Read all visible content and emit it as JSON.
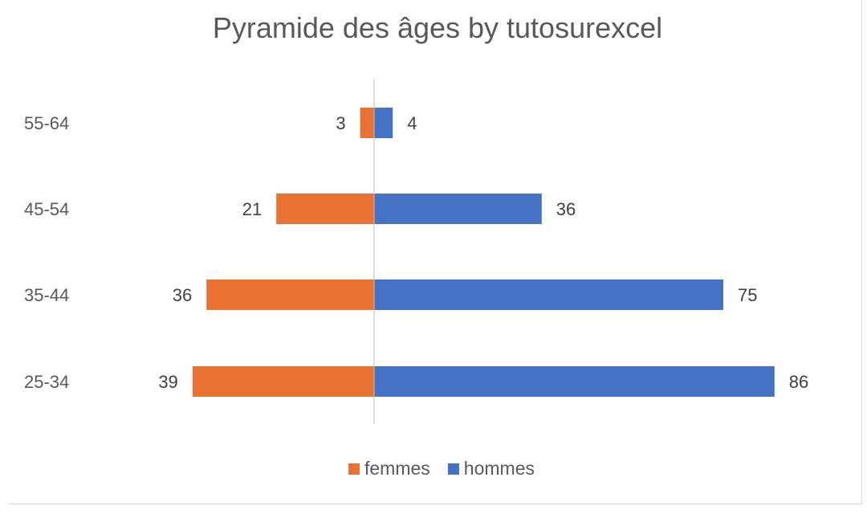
{
  "chart_data": {
    "type": "bar",
    "orientation": "horizontal",
    "title": "Pyramide des âges by tutosurexcel",
    "categories": [
      "55-64",
      "45-54",
      "35-44",
      "25-34"
    ],
    "series": [
      {
        "name": "femmes",
        "values": [
          3,
          21,
          36,
          39
        ],
        "color": "#E97132",
        "side": "left"
      },
      {
        "name": "hommes",
        "values": [
          4,
          36,
          75,
          86
        ],
        "color": "#4472C4",
        "side": "right"
      }
    ],
    "xlim": [
      -80,
      100
    ],
    "grid": false,
    "legend_position": "bottom"
  }
}
